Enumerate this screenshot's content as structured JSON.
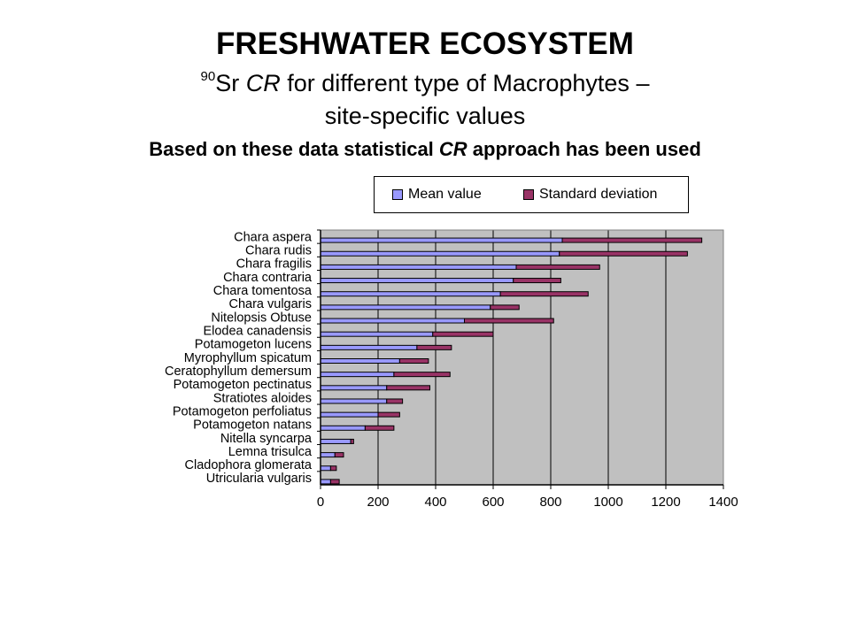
{
  "header": {
    "title": "FRESHWATER ECOSYSTEM",
    "subtitle_sup": "90",
    "subtitle_a": "Sr ",
    "subtitle_b": "CR",
    "subtitle_c": " for different type of Macrophytes –",
    "subtitle_line2": "site-specific values",
    "note_a": "Based on these data statistical ",
    "note_b": "CR",
    "note_c": " approach has been used"
  },
  "colors": {
    "mean": "#9999ff",
    "sd": "#993366",
    "plot_bg": "#c0c0c0",
    "grid": "#000000"
  },
  "chart_data": {
    "type": "bar",
    "orientation": "horizontal",
    "stacked": true,
    "categories": [
      "Utricularia vulgaris",
      "Cladophora glomerata",
      "Lemna trisulca",
      "Nitella syncarpa",
      "Potamogeton natans",
      "Potamogeton perfoliatus",
      "Stratiotes aloides",
      "Potamogeton pectinatus",
      "Ceratophyllum demersum",
      "Myrophyllum spicatum",
      "Potamogeton lucens",
      "Elodea canadensis",
      "Nitelopsis Obtuse",
      "Chara vulgaris",
      "Chara tomentosa",
      "Chara contraria",
      "Chara fragilis",
      "Chara rudis",
      "Chara aspera"
    ],
    "series": [
      {
        "name": "Mean value",
        "values": [
          35,
          35,
          50,
          105,
          155,
          200,
          230,
          230,
          255,
          275,
          335,
          390,
          500,
          590,
          625,
          670,
          680,
          830,
          840
        ]
      },
      {
        "name": "Standard deviation",
        "values": [
          30,
          20,
          30,
          10,
          100,
          75,
          55,
          150,
          195,
          100,
          120,
          210,
          310,
          100,
          305,
          165,
          290,
          445,
          485
        ]
      }
    ],
    "x_ticks": [
      "0",
      "200",
      "400",
      "600",
      "800",
      "1000",
      "1200",
      "1400"
    ],
    "xlim": [
      0,
      1400
    ],
    "grid": "vertical",
    "legend_position": "top"
  }
}
